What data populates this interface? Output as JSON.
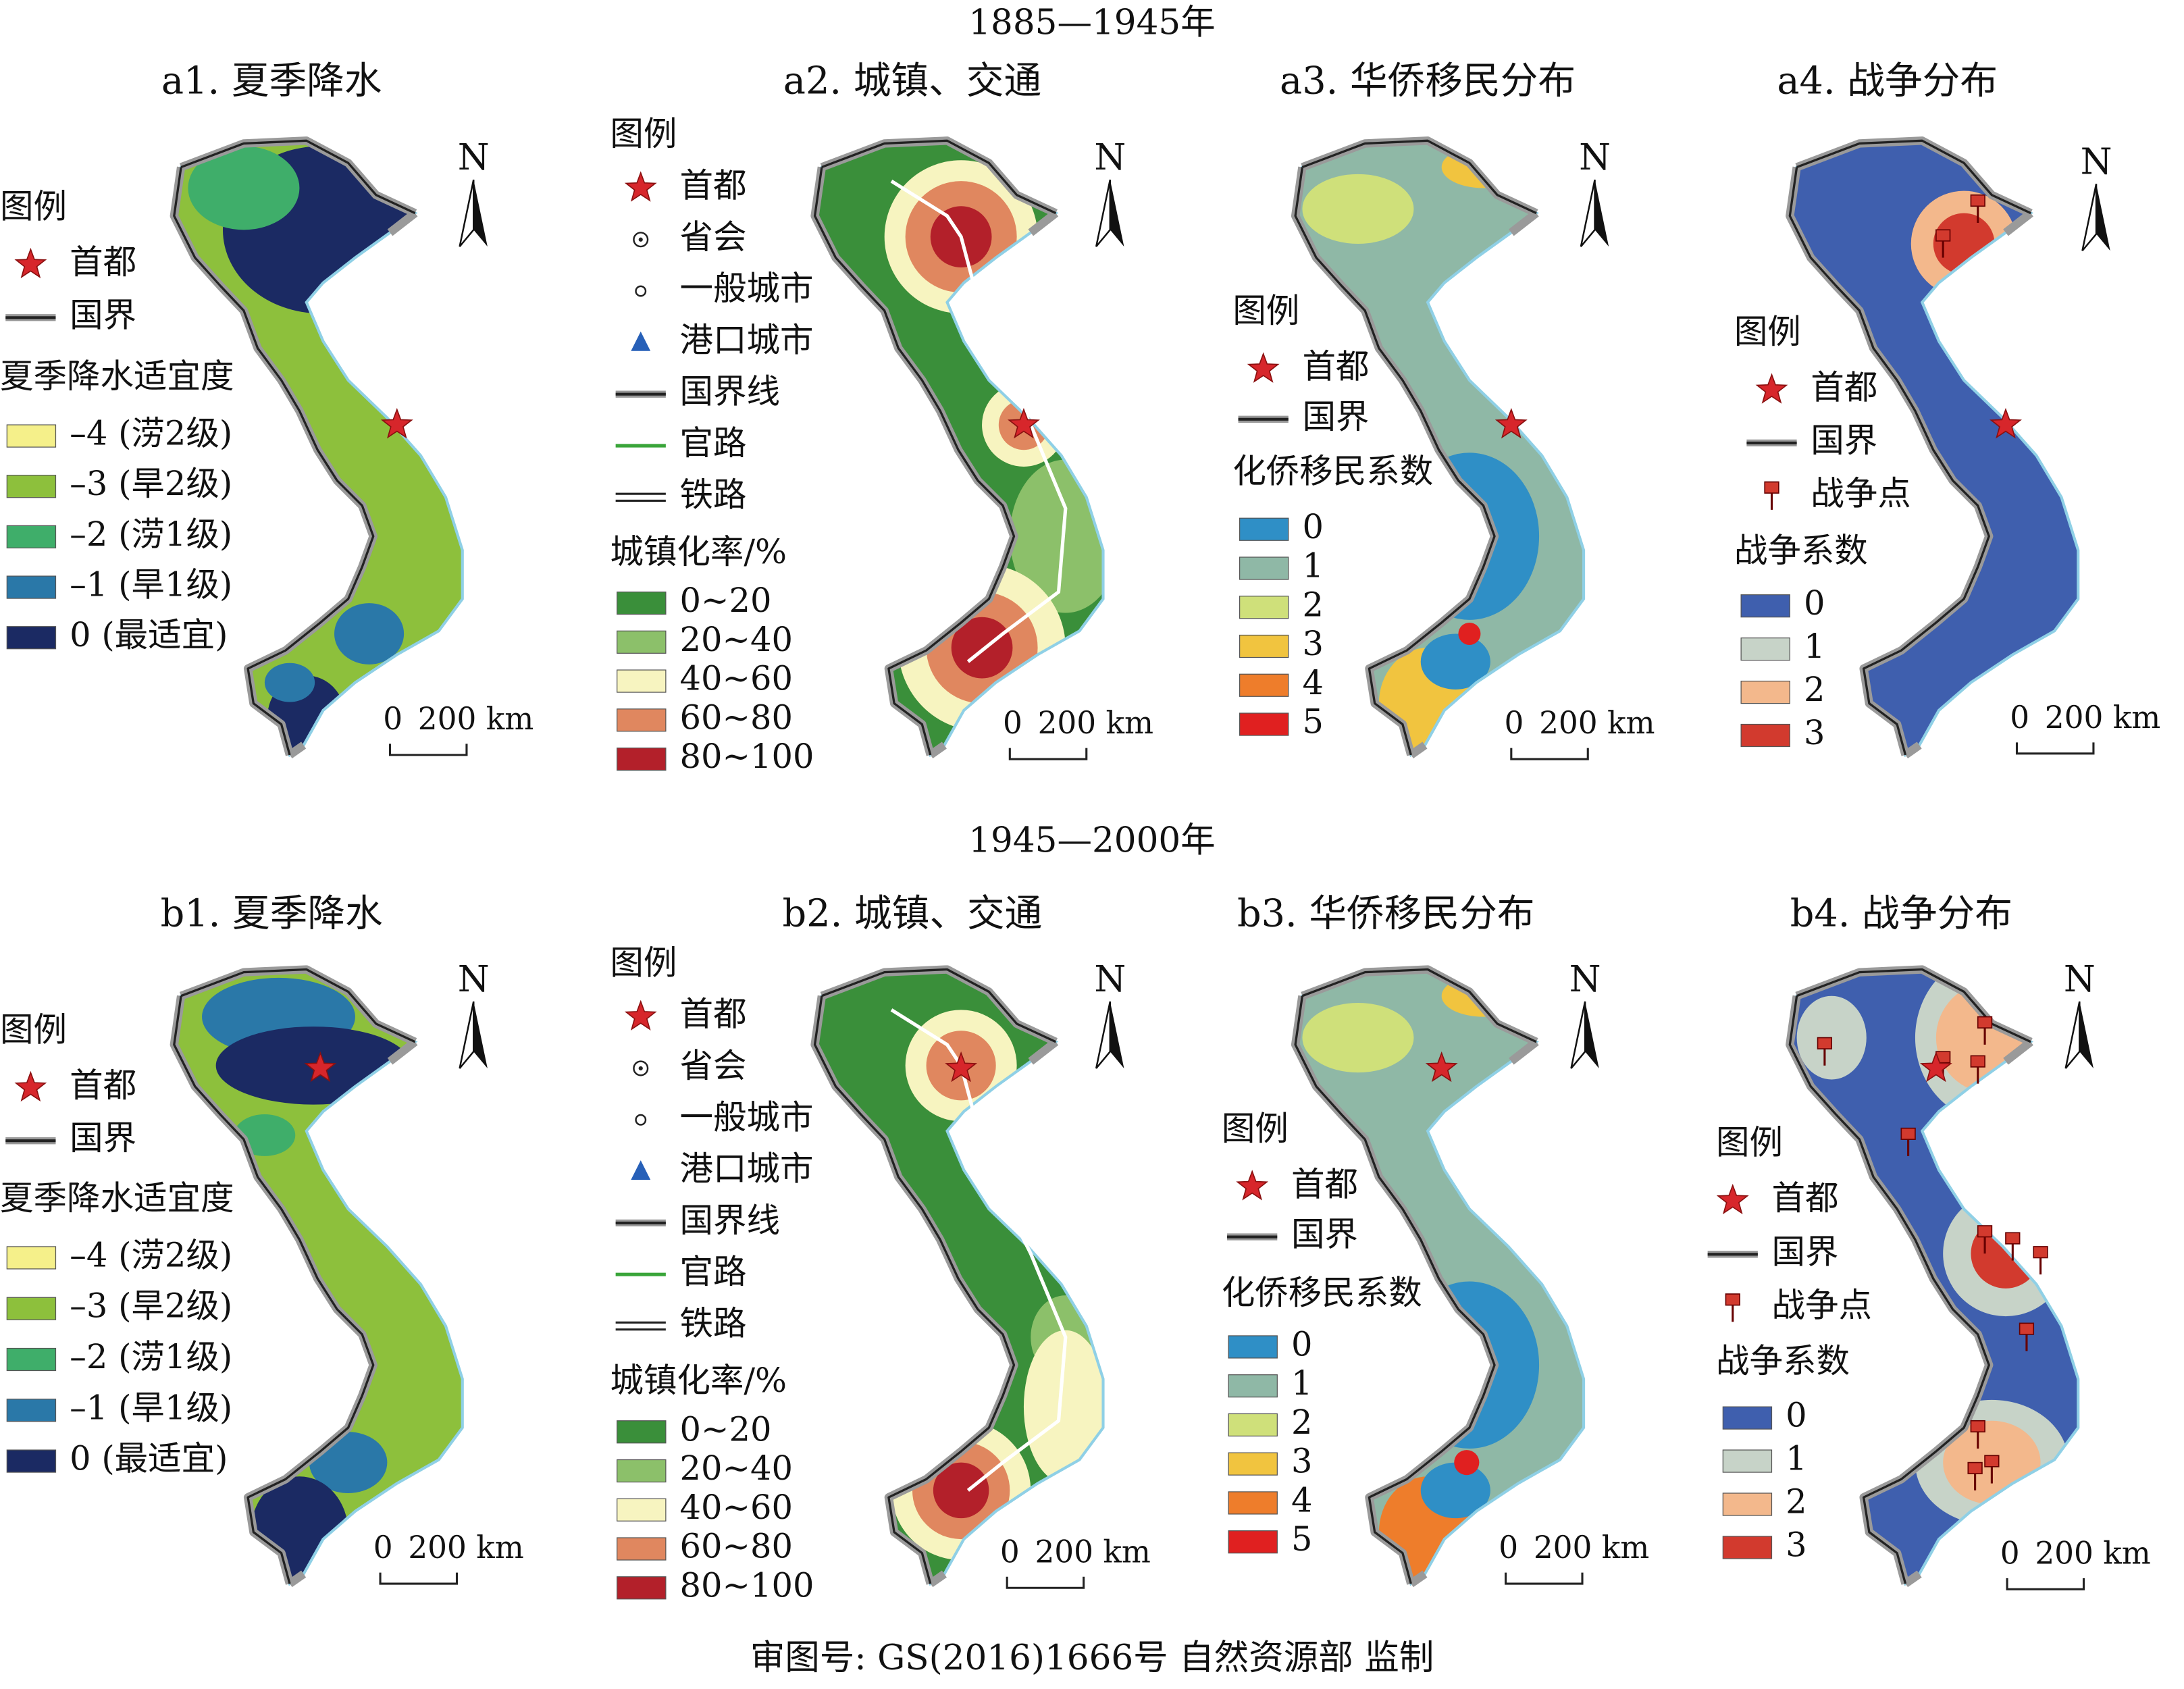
{
  "header_top": "1885—1945年",
  "header_bottom": "1945—2000年",
  "footer": "审图号: GS(2016)1666号 自然资源部 监制",
  "panels": [
    {
      "title": "a1. 夏季降水",
      "legend_title": "图例",
      "legend_items": [
        "首都",
        "国界"
      ],
      "class_title": "夏季降水适宜度",
      "classes": [
        {
          "label": "–4 (涝2级)",
          "color": "#f5f08a"
        },
        {
          "label": "–3 (旱2级)",
          "color": "#8dc03c"
        },
        {
          "label": "–2 (涝1级)",
          "color": "#3fae6a"
        },
        {
          "label": "–1 (旱1级)",
          "color": "#2a78a8"
        },
        {
          "label": "0 (最适宜)",
          "color": "#1b2a63"
        }
      ],
      "scale_zero": "0",
      "scale_label": "200 km",
      "north": "N"
    },
    {
      "title": "a2. 城镇、交通",
      "legend_title": "图例",
      "legend_items": [
        "首都",
        "省会",
        "一般城市",
        "港口城市",
        "国界线",
        "官路",
        "铁路"
      ],
      "class_title": "城镇化率/%",
      "classes": [
        {
          "label": "0~20",
          "color": "#3a8f3a"
        },
        {
          "label": "20~40",
          "color": "#8cc06a"
        },
        {
          "label": "40~60",
          "color": "#f7f4c0"
        },
        {
          "label": "60~80",
          "color": "#e0875f"
        },
        {
          "label": "80~100",
          "color": "#b3202a"
        }
      ],
      "scale_zero": "0",
      "scale_label": "200 km",
      "north": "N"
    },
    {
      "title": "a3. 华侨移民分布",
      "legend_title": "图例",
      "legend_items": [
        "首都",
        "国界"
      ],
      "class_title": "化侨移民系数",
      "classes": [
        {
          "label": "0",
          "color": "#2f8fc6"
        },
        {
          "label": "1",
          "color": "#8fb8a6"
        },
        {
          "label": "2",
          "color": "#cfe07a"
        },
        {
          "label": "3",
          "color": "#f1c43f"
        },
        {
          "label": "4",
          "color": "#ee7d2b"
        },
        {
          "label": "5",
          "color": "#e02020"
        }
      ],
      "scale_zero": "0",
      "scale_label": "200 km",
      "north": "N"
    },
    {
      "title": "a4. 战争分布",
      "legend_title": "图例",
      "legend_items": [
        "首都",
        "国界",
        "战争点"
      ],
      "class_title": "战争系数",
      "classes": [
        {
          "label": "0",
          "color": "#3f5fae"
        },
        {
          "label": "1",
          "color": "#c7d3c8"
        },
        {
          "label": "2",
          "color": "#f3b88c"
        },
        {
          "label": "3",
          "color": "#d23a2e"
        }
      ],
      "scale_zero": "0",
      "scale_label": "200 km",
      "north": "N"
    },
    {
      "title": "b1. 夏季降水",
      "legend_title": "图例",
      "legend_items": [
        "首都",
        "国界"
      ],
      "class_title": "夏季降水适宜度",
      "classes": [
        {
          "label": "–4 (涝2级)",
          "color": "#f5f08a"
        },
        {
          "label": "–3 (旱2级)",
          "color": "#8dc03c"
        },
        {
          "label": "–2 (涝1级)",
          "color": "#3fae6a"
        },
        {
          "label": "–1 (旱1级)",
          "color": "#2a78a8"
        },
        {
          "label": "0 (最适宜)",
          "color": "#1b2a63"
        }
      ],
      "scale_zero": "0",
      "scale_label": "200 km",
      "north": "N"
    },
    {
      "title": "b2. 城镇、交通",
      "legend_title": "图例",
      "legend_items": [
        "首都",
        "省会",
        "一般城市",
        "港口城市",
        "国界线",
        "官路",
        "铁路"
      ],
      "class_title": "城镇化率/%",
      "classes": [
        {
          "label": "0~20",
          "color": "#3a8f3a"
        },
        {
          "label": "20~40",
          "color": "#8cc06a"
        },
        {
          "label": "40~60",
          "color": "#f7f4c0"
        },
        {
          "label": "60~80",
          "color": "#e0875f"
        },
        {
          "label": "80~100",
          "color": "#b3202a"
        }
      ],
      "scale_zero": "0",
      "scale_label": "200 km",
      "north": "N"
    },
    {
      "title": "b3. 华侨移民分布",
      "legend_title": "图例",
      "legend_items": [
        "首都",
        "国界"
      ],
      "class_title": "化侨移民系数",
      "classes": [
        {
          "label": "0",
          "color": "#2f8fc6"
        },
        {
          "label": "1",
          "color": "#8fb8a6"
        },
        {
          "label": "2",
          "color": "#cfe07a"
        },
        {
          "label": "3",
          "color": "#f1c43f"
        },
        {
          "label": "4",
          "color": "#ee7d2b"
        },
        {
          "label": "5",
          "color": "#e02020"
        }
      ],
      "scale_zero": "0",
      "scale_label": "200 km",
      "north": "N"
    },
    {
      "title": "b4. 战争分布",
      "legend_title": "图例",
      "legend_items": [
        "首都",
        "国界",
        "战争点"
      ],
      "class_title": "战争系数",
      "classes": [
        {
          "label": "0",
          "color": "#3f5fae"
        },
        {
          "label": "1",
          "color": "#c7d3c8"
        },
        {
          "label": "2",
          "color": "#f3b88c"
        },
        {
          "label": "3",
          "color": "#d23a2e"
        }
      ],
      "scale_zero": "0",
      "scale_label": "200 km",
      "north": "N"
    }
  ]
}
